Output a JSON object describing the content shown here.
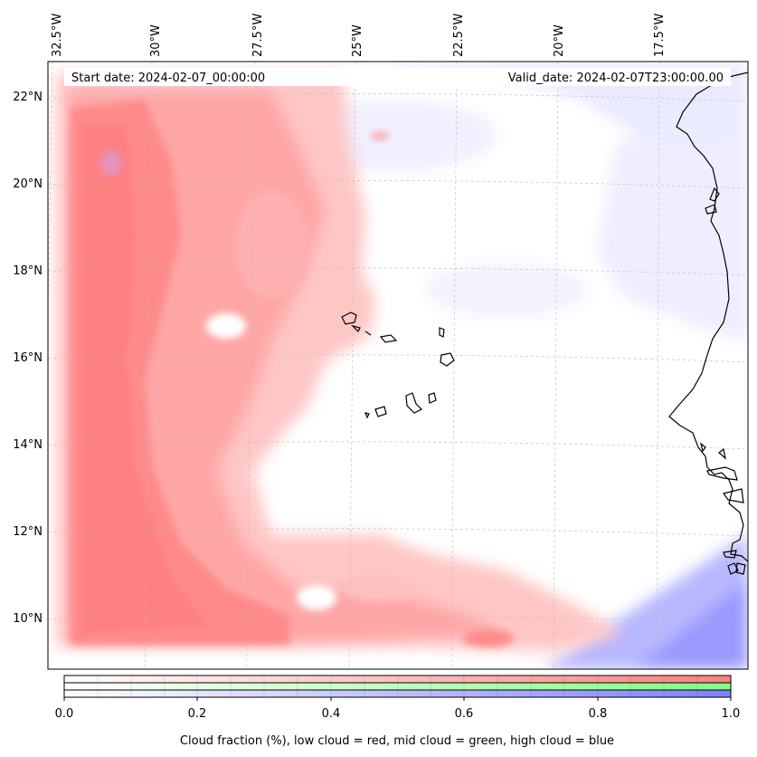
{
  "header": {
    "start_date": "Start date: 2024-02-07_00:00:00",
    "valid_date": "Valid_date: 2024-02-07T23:00:00.00"
  },
  "lon_labels": [
    "32.5°W",
    "30°W",
    "27.5°W",
    "25°W",
    "22.5°W",
    "20°W",
    "17.5°W"
  ],
  "lat_labels": [
    "22°N",
    "20°N",
    "18°N",
    "16°N",
    "14°N",
    "12°N",
    "10°N"
  ],
  "colorbar": {
    "ticks": [
      "0.0",
      "0.2",
      "0.4",
      "0.6",
      "0.8",
      "1.0"
    ],
    "label": "Cloud fraction (%), low cloud = red, mid cloud = green, high cloud = blue",
    "low_color": "#ff7f7f",
    "mid_color": "#7fff7f",
    "high_color": "#7f7fff"
  }
}
